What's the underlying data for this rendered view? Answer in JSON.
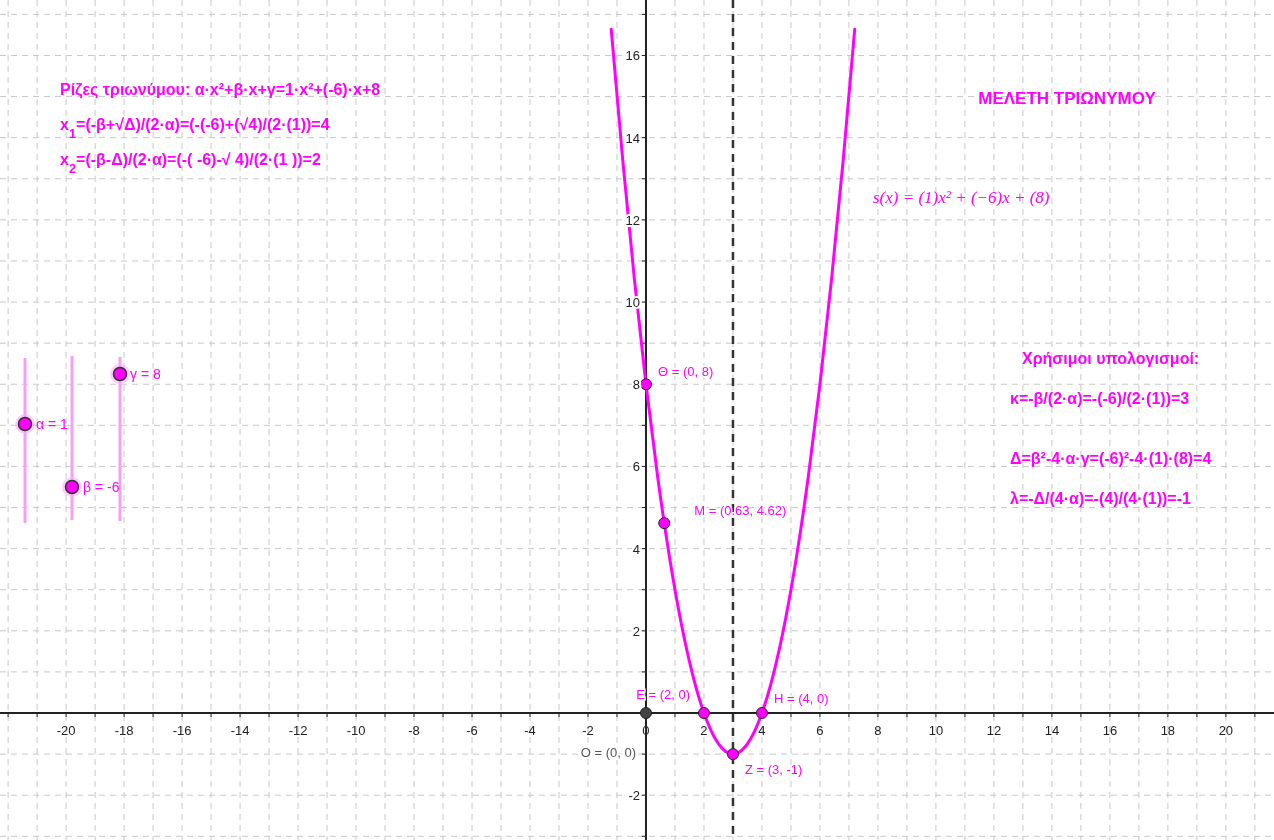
{
  "chart_data": {
    "type": "line",
    "title": "ΜΕΛΕΤΗ  ΤΡΙΩΝΥΜΟΥ",
    "xlim": [
      -22.28,
      21.66
    ],
    "ylim": [
      -3.09,
      17.35
    ],
    "xticks": [
      {
        "value": -22,
        "label": null
      },
      {
        "value": -21,
        "label": null
      },
      -20,
      {
        "value": -19,
        "label": null
      },
      -18,
      {
        "value": -17,
        "label": null
      },
      -16,
      {
        "value": -15,
        "label": null
      },
      -14,
      {
        "value": -13,
        "label": null
      },
      -12,
      {
        "value": -11,
        "label": null
      },
      -10,
      {
        "value": -9,
        "label": null
      },
      -8,
      {
        "value": -7,
        "label": null
      },
      -6,
      {
        "value": -5,
        "label": null
      },
      -4,
      {
        "value": -3,
        "label": null
      },
      -2,
      {
        "value": -1,
        "label": null
      },
      0,
      {
        "value": 1,
        "label": null
      },
      2,
      {
        "value": 3,
        "label": null
      },
      4,
      {
        "value": 5,
        "label": null
      },
      6,
      {
        "value": 7,
        "label": null
      },
      8,
      {
        "value": 9,
        "label": null
      },
      10,
      {
        "value": 11,
        "label": null
      },
      12,
      {
        "value": 13,
        "label": null
      },
      14,
      {
        "value": 15,
        "label": null
      },
      16,
      {
        "value": 17,
        "label": null
      },
      18,
      {
        "value": 19,
        "label": null
      },
      20,
      {
        "value": 21,
        "label": null
      }
    ],
    "yticks": [
      {
        "value": -3,
        "label": null
      },
      -2,
      {
        "value": -1,
        "label": null
      },
      {
        "value": 0,
        "label": null
      },
      {
        "value": 1,
        "label": null
      },
      2,
      {
        "value": 3,
        "label": null
      },
      4,
      {
        "value": 5,
        "label": null
      },
      6,
      {
        "value": 7,
        "label": null
      },
      8,
      {
        "value": 9,
        "label": null
      },
      10,
      {
        "value": 11,
        "label": null
      },
      12,
      {
        "value": 13,
        "label": null
      },
      14,
      {
        "value": 15,
        "label": null
      },
      16,
      {
        "value": 17,
        "label": null
      }
    ],
    "grid": true,
    "series": [
      {
        "color": "#ff00ff",
        "x": [
          -1.2,
          -0.8,
          -0.4,
          0,
          0.4,
          0.8,
          1.2,
          1.6,
          2,
          2.4,
          2.8,
          3,
          3.2,
          3.6,
          4,
          4.4,
          4.8,
          5.2,
          5.6,
          6,
          6.4,
          6.8,
          7.2
        ],
        "values": [
          16.64,
          13.44,
          10.56,
          8,
          5.76,
          3.84,
          2.24,
          0.96,
          0,
          -0.64,
          -0.96,
          -1,
          -0.96,
          -0.64,
          0,
          0.96,
          2.24,
          3.84,
          5.76,
          8,
          10.56,
          13.44,
          16.64
        ]
      },
      {
        "type": "scatter",
        "marker": "circle",
        "color": "#ff00ff",
        "x": [
          0,
          0.63,
          2,
          3,
          4
        ],
        "values": [
          8,
          4.62,
          0,
          -1,
          0
        ]
      },
      {
        "type": "scatter",
        "marker": "circle",
        "color": "#444444",
        "x": [
          0
        ],
        "values": [
          0
        ]
      }
    ],
    "ref_lines": [
      {
        "axis": "x",
        "value": 3,
        "color": "#333333",
        "line_style": "dashed"
      }
    ],
    "annotations": [
      "Ρίζες τριωνύμου: α·x²+β·x+γ=1·x²+(-6)·x+8",
      "x$_{1}$=(-β+√Δ)/(2·α)=(-(-6)+(√4)/(2·(1))=4",
      "x$_{2}$=(-β-Δ)/(2·α)=(-( -6)-√ 4)/(2·(1 ))=2",
      "s(x) = (1)x² + (−6)x + (8)",
      "Χρήσιμοι υπολογισμοί:",
      "κ=-β/(2·α)=-(-6)/(2·(1))=3",
      "Δ=β²-4·α·γ=(-6)²-4·(1)·(8)=4",
      "λ=-Δ/(4·α)=-(4)/(4·(1))=-1",
      "α = 1",
      "β = -6",
      "γ = 8",
      {
        "text": "Θ = (0, 8)",
        "x": 0,
        "y": 8
      },
      {
        "text": "M = (0.63, 4.62)",
        "x": 0.63,
        "y": 4.62
      },
      {
        "text": "E = (2, 0)",
        "x": 2,
        "y": 0
      },
      {
        "text": "Z = (3, -1)",
        "x": 3,
        "y": -1
      },
      {
        "text": "H = (4, 0)",
        "x": 4,
        "y": 0
      },
      {
        "text": "O = (0, 0)",
        "x": 0,
        "y": 0
      }
    ]
  }
}
